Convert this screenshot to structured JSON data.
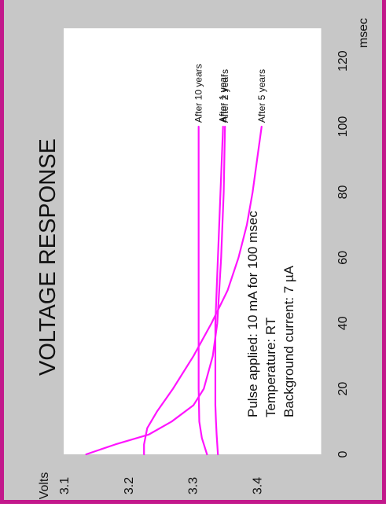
{
  "chart_data": {
    "type": "line",
    "title": "VOLTAGE RESPONSE",
    "xlabel": "msec",
    "ylabel": "Volts",
    "xlim": [
      0,
      130
    ],
    "ylim": [
      3.1,
      3.5
    ],
    "x_ticks": [
      0,
      20,
      40,
      60,
      80,
      100,
      120
    ],
    "y_ticks": [
      3.1,
      3.2,
      3.3,
      3.4
    ],
    "y_tick_labels": [
      "3.1",
      "3.2",
      "3.3",
      "3.4"
    ],
    "grid": true,
    "notes": [
      "Pulse applied: 10 mA for 100 msec",
      "Temperature: RT",
      "Background current: 7 µA"
    ],
    "series": [
      {
        "name": "After 1 year",
        "x": [
          0,
          3,
          6,
          10,
          15,
          20,
          30,
          40,
          50,
          60,
          70,
          80,
          90,
          100
        ],
        "y": [
          3.34,
          3.339,
          3.338,
          3.337,
          3.336,
          3.336,
          3.336,
          3.336,
          3.338,
          3.34,
          3.342,
          3.344,
          3.346,
          3.348
        ]
      },
      {
        "name": "After 2 years",
        "x": [
          0,
          3,
          6,
          10,
          15,
          20,
          30,
          40,
          50,
          60,
          70,
          80,
          90,
          100
        ],
        "y": [
          3.135,
          3.18,
          3.232,
          3.268,
          3.302,
          3.318,
          3.332,
          3.339,
          3.342,
          3.345,
          3.347,
          3.349,
          3.35,
          3.351
        ]
      },
      {
        "name": "After 5 years",
        "x": [
          0,
          3,
          8,
          13,
          20,
          30,
          40,
          50,
          60,
          70,
          80,
          90,
          100
        ],
        "y": [
          3.225,
          3.225,
          3.23,
          3.245,
          3.27,
          3.302,
          3.33,
          3.355,
          3.372,
          3.385,
          3.394,
          3.401,
          3.408
        ]
      },
      {
        "name": "After 10 years",
        "x": [
          0,
          5,
          10,
          20,
          30,
          40,
          50,
          60,
          70,
          80,
          90,
          100
        ],
        "y": [
          3.323,
          3.315,
          3.311,
          3.31,
          3.31,
          3.31,
          3.31,
          3.31,
          3.31,
          3.31,
          3.31,
          3.31
        ]
      }
    ]
  }
}
